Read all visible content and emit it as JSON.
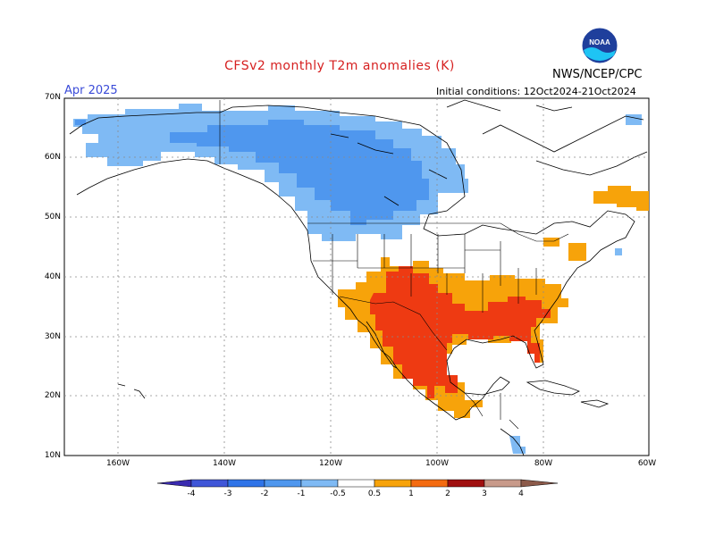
{
  "header": {
    "title": "CFSv2 monthly T2m anomalies (K)",
    "valid_month": "Apr 2025",
    "initial_conditions": "Initial conditions: 12Oct2024-21Oct2024",
    "agency": "NWS/NCEP/CPC",
    "logo_text": "NOAA"
  },
  "axes": {
    "lat_labels": [
      "70N",
      "60N",
      "50N",
      "40N",
      "30N",
      "20N",
      "10N"
    ],
    "lon_labels": [
      "160W",
      "140W",
      "120W",
      "100W",
      "80W",
      "60W"
    ]
  },
  "colorbar": {
    "labels": [
      "-4",
      "-3",
      "-2",
      "-1",
      "-0.5",
      "0.5",
      "1",
      "2",
      "3",
      "4"
    ],
    "colors": [
      "#3a2bb0",
      "#3f56d8",
      "#2f74e8",
      "#4f97ee",
      "#7fbaf4",
      "#ffffff",
      "#f7a30a",
      "#f46b10",
      "#ee3a12",
      "#a01010",
      "#c89a8a",
      "#8c5a4a"
    ]
  },
  "map": {
    "region": "North America",
    "lat_range": [
      10,
      70
    ],
    "lon_range": [
      -170,
      -60
    ],
    "anomaly_regions": [
      {
        "area": "Alaska and western Canada",
        "category": "-1 to -0.5",
        "color": "#7fbaf4"
      },
      {
        "area": "Central western Canada",
        "category": "-2 to -1",
        "color": "#4f97ee"
      },
      {
        "area": "Southern US and Mexico",
        "category": "0.5 to 1",
        "color": "#f7a30a"
      },
      {
        "area": "Texas, Gulf Coast and Mexico",
        "category": "1 to 2",
        "color": "#f46b10"
      },
      {
        "area": "Eastern Canada",
        "category": "0.5 to 1",
        "color": "#f7a30a"
      }
    ]
  }
}
